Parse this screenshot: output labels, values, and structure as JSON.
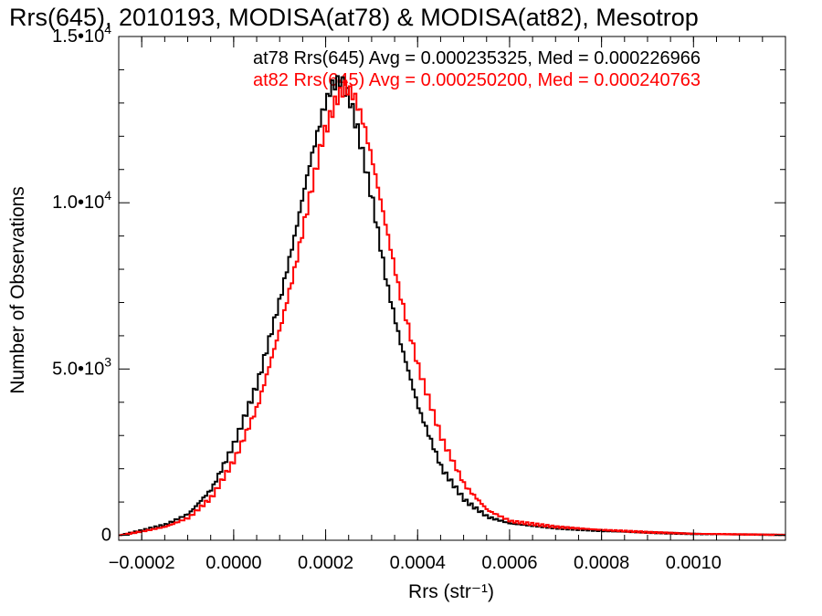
{
  "chart_data": {
    "type": "line",
    "step": true,
    "title": "Rrs(645), 2010193, MODISA(at78) & MODISA(at82), Mesotrop",
    "xlabel": "Rrs (str⁻¹)",
    "ylabel": "Number of Observations",
    "xlim": [
      -0.00025,
      0.0012
    ],
    "ylim": [
      -150,
      15000
    ],
    "x_ticks": [
      {
        "value": -0.0002,
        "label": "−0.0002"
      },
      {
        "value": 0.0,
        "label": "0.0000"
      },
      {
        "value": 0.0002,
        "label": "0.0002"
      },
      {
        "value": 0.0004,
        "label": "0.0004"
      },
      {
        "value": 0.0006,
        "label": "0.0006"
      },
      {
        "value": 0.0008,
        "label": "0.0008"
      },
      {
        "value": 0.001,
        "label": "0.0010"
      }
    ],
    "y_ticks": [
      {
        "value": 0,
        "label": "0"
      },
      {
        "value": 5000,
        "label": "5.0•103"
      },
      {
        "value": 10000,
        "label": "1.0•104"
      },
      {
        "value": 15000,
        "label": "1.5•104"
      }
    ],
    "grid": false,
    "legend_position": "top-right",
    "series": [
      {
        "name": "at78 Rrs(645) Avg = 0.000235325, Med = 0.000226966",
        "color": "#000000",
        "x": [
          -0.00025,
          -0.0002,
          -0.00015,
          -0.0001,
          -5e-05,
          0.0,
          5e-05,
          0.0001,
          0.00013,
          0.00016,
          0.00019,
          0.00021,
          0.00023,
          0.00025,
          0.00027,
          0.0003,
          0.00033,
          0.00036,
          0.0004,
          0.00045,
          0.0005,
          0.00055,
          0.0006,
          0.0007,
          0.0008,
          0.0009,
          0.001,
          0.0012
        ],
        "y": [
          0,
          150,
          320,
          650,
          1400,
          2800,
          4600,
          7200,
          9000,
          11000,
          12700,
          13500,
          13700,
          13100,
          12000,
          10000,
          7600,
          5800,
          3800,
          2000,
          1050,
          550,
          350,
          220,
          130,
          80,
          40,
          10
        ]
      },
      {
        "name": "at82 Rrs(645) Avg = 0.000250200, Med = 0.000240763",
        "color": "#ff0000",
        "x": [
          -0.00025,
          -0.0002,
          -0.00015,
          -0.0001,
          -5e-05,
          0.0,
          5e-05,
          0.0001,
          0.00013,
          0.00016,
          0.00019,
          0.00022,
          0.00024,
          0.00026,
          0.00028,
          0.0003,
          0.00033,
          0.00036,
          0.0004,
          0.00045,
          0.0005,
          0.00055,
          0.0006,
          0.0007,
          0.0008,
          0.0009,
          0.001,
          0.0012
        ],
        "y": [
          0,
          120,
          260,
          530,
          1150,
          2300,
          3900,
          6300,
          8000,
          10000,
          11900,
          13100,
          13500,
          13200,
          12400,
          11200,
          9200,
          7200,
          5000,
          2900,
          1500,
          750,
          420,
          250,
          160,
          90,
          45,
          10
        ]
      }
    ]
  }
}
